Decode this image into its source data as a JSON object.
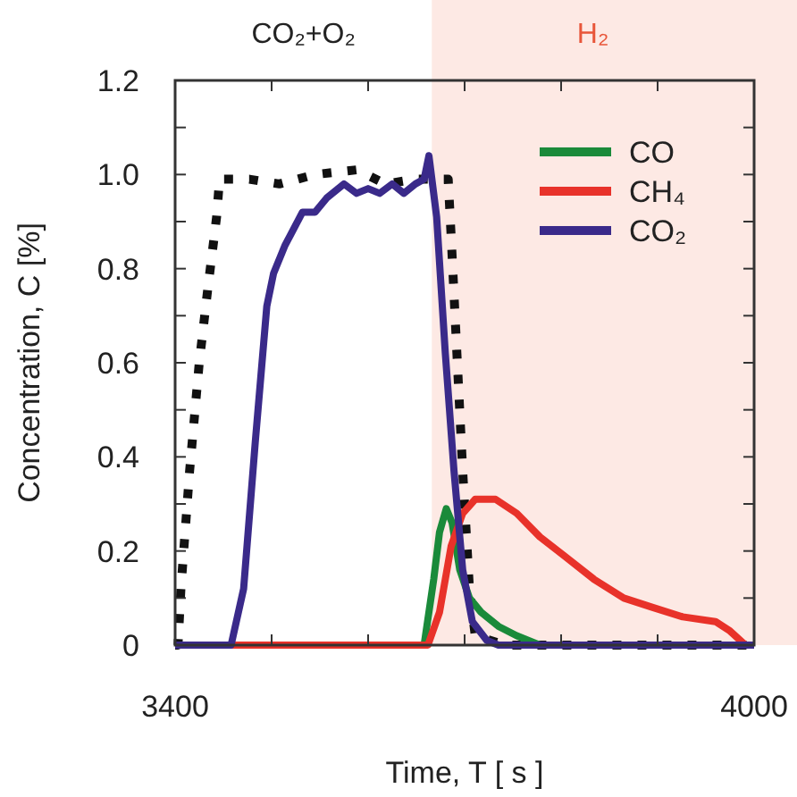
{
  "chart_data": {
    "type": "line",
    "xlabel": "Time, T [ s ]",
    "ylabel": "Concentration, C [%]",
    "xlim": [
      3400,
      4000
    ],
    "xticks": [
      3400,
      {
        "value": 3500,
        "label": null
      },
      {
        "value": 3600,
        "label": null
      },
      {
        "value": 3700,
        "label": null
      },
      {
        "value": 3800,
        "label": null
      },
      {
        "value": 3900,
        "label": null
      },
      4000
    ],
    "ylim": [
      0,
      1.2
    ],
    "yticks": [
      0,
      {
        "value": 0.1,
        "label": null
      },
      0.2,
      {
        "value": 0.3,
        "label": null
      },
      0.4,
      {
        "value": 0.5,
        "label": null
      },
      0.6,
      {
        "value": 0.7,
        "label": null
      },
      0.8,
      {
        "value": 0.9,
        "label": null
      },
      {
        "value": 1,
        "label": "1.0"
      },
      {
        "value": 1.1,
        "label": null
      },
      1.2
    ],
    "bands": [
      {
        "axis": "x",
        "from": 3666,
        "to": 4000,
        "label": "H₂",
        "color": "#fde9e4"
      }
    ],
    "annotations": [
      "CO₂+O₂"
    ],
    "legend": "top right",
    "grid": false,
    "marker": "none",
    "series": [
      {
        "color": "#111111",
        "line_style": "dotted",
        "x": [
          3400,
          3403,
          3406,
          3415,
          3425,
          3434,
          3443,
          3446,
          3477,
          3508,
          3545,
          3588,
          3618,
          3649,
          3683,
          3686,
          3692,
          3698,
          3705,
          3711,
          3742,
          4000
        ],
        "values": [
          0,
          0,
          0.12,
          0.37,
          0.6,
          0.76,
          0.91,
          0.99,
          0.99,
          0.98,
          1.0,
          1.01,
          0.98,
          0.99,
          0.99,
          0.87,
          0.62,
          0.37,
          0.12,
          0.02,
          0,
          0
        ]
      },
      {
        "name": "CO",
        "color": "#1a8a3a",
        "x": [
          3658,
          3668,
          3674,
          3681,
          3687,
          3695,
          3705,
          3717,
          3735,
          3754,
          3778
        ],
        "values": [
          0,
          0.14,
          0.24,
          0.29,
          0.26,
          0.16,
          0.1,
          0.07,
          0.04,
          0.02,
          0
        ]
      },
      {
        "name": "CH₄",
        "color": "#e8322a",
        "x": [
          3400,
          3662,
          3674,
          3686,
          3698,
          3711,
          3732,
          3754,
          3778,
          3803,
          3834,
          3865,
          3895,
          3926,
          3960,
          3975,
          3991
        ],
        "values": [
          0,
          0,
          0.07,
          0.21,
          0.28,
          0.31,
          0.31,
          0.28,
          0.23,
          0.19,
          0.14,
          0.1,
          0.08,
          0.06,
          0.05,
          0.03,
          0
        ]
      },
      {
        "name": "CO₂",
        "color": "#3a2a8a",
        "x": [
          3400,
          3458,
          3471,
          3483,
          3495,
          3502,
          3514,
          3532,
          3545,
          3557,
          3575,
          3588,
          3600,
          3612,
          3625,
          3637,
          3649,
          3658,
          3663,
          3671,
          3680,
          3689,
          3698,
          3708,
          3723,
          3735,
          4000
        ],
        "values": [
          0,
          0,
          0.12,
          0.43,
          0.72,
          0.79,
          0.85,
          0.92,
          0.92,
          0.95,
          0.98,
          0.96,
          0.97,
          0.96,
          0.98,
          0.96,
          0.98,
          0.99,
          1.04,
          0.91,
          0.62,
          0.37,
          0.16,
          0.05,
          0.01,
          0,
          0
        ]
      }
    ]
  }
}
